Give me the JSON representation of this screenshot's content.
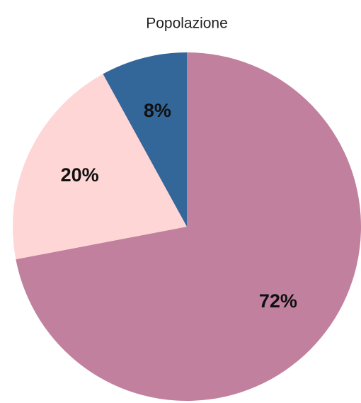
{
  "chart_data": {
    "type": "pie",
    "title": "Popolazione",
    "values": [
      72,
      20,
      8
    ],
    "value_labels": [
      "72%",
      "20%",
      "8%"
    ],
    "colors": [
      "#c0809e",
      "#ffd6d6",
      "#336699"
    ]
  }
}
